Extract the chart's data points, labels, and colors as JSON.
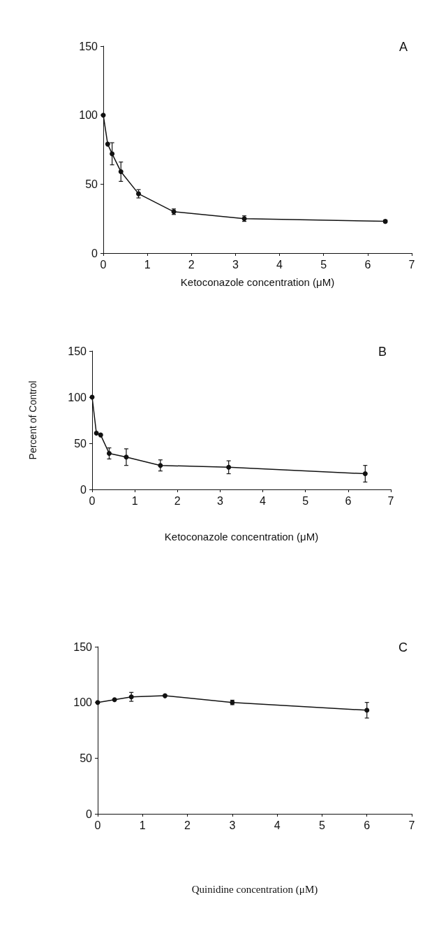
{
  "chart_data": [
    {
      "type": "line",
      "xlabel": "Ketoconazole concentration (μM)",
      "annotations": [
        "A"
      ],
      "x": [
        0,
        0.1,
        0.2,
        0.4,
        0.8,
        1.6,
        3.2,
        6.4
      ],
      "values": [
        100,
        79,
        72,
        59,
        43,
        30,
        25,
        23
      ],
      "errors": [
        null,
        null,
        8,
        7,
        3,
        2,
        2,
        1
      ],
      "color": "#111111",
      "xlim": [
        0,
        7
      ],
      "xticks": [
        0,
        1,
        2,
        3,
        4,
        5,
        6,
        7
      ],
      "ylim": [
        0,
        150
      ],
      "yticks": [
        0,
        50,
        100,
        150
      ],
      "marker": "circle",
      "line_style": "solid",
      "grid": false
    },
    {
      "type": "line",
      "xlabel": "Ketoconazole concentration (μM)",
      "ylabel": "Percent of Control",
      "annotations": [
        "B"
      ],
      "x": [
        0,
        0.1,
        0.2,
        0.4,
        0.8,
        1.6,
        3.2,
        6.4
      ],
      "values": [
        100,
        61,
        59,
        39,
        35,
        26,
        24,
        17
      ],
      "errors": [
        null,
        null,
        1,
        6,
        9,
        6,
        7,
        9
      ],
      "color": "#111111",
      "xlim": [
        0,
        7
      ],
      "xticks": [
        0,
        1,
        2,
        3,
        4,
        5,
        6,
        7
      ],
      "ylim": [
        0,
        150
      ],
      "yticks": [
        0,
        50,
        100,
        150
      ],
      "marker": "circle",
      "line_style": "solid",
      "grid": false
    },
    {
      "type": "line",
      "xlabel": "Quinidine concentration (μM)",
      "annotations": [
        "C"
      ],
      "x": [
        0,
        0.375,
        0.75,
        1.5,
        3,
        6
      ],
      "values": [
        100,
        102.5,
        105,
        106,
        100,
        93
      ],
      "errors": [
        null,
        null,
        4,
        null,
        2,
        7
      ],
      "color": "#111111",
      "xlim": [
        0,
        7
      ],
      "xticks": [
        0,
        1,
        2,
        3,
        4,
        5,
        6,
        7
      ],
      "ylim": [
        0,
        150
      ],
      "yticks": [
        0,
        50,
        100,
        150
      ],
      "marker": "circle",
      "line_style": "solid",
      "grid": false
    }
  ]
}
